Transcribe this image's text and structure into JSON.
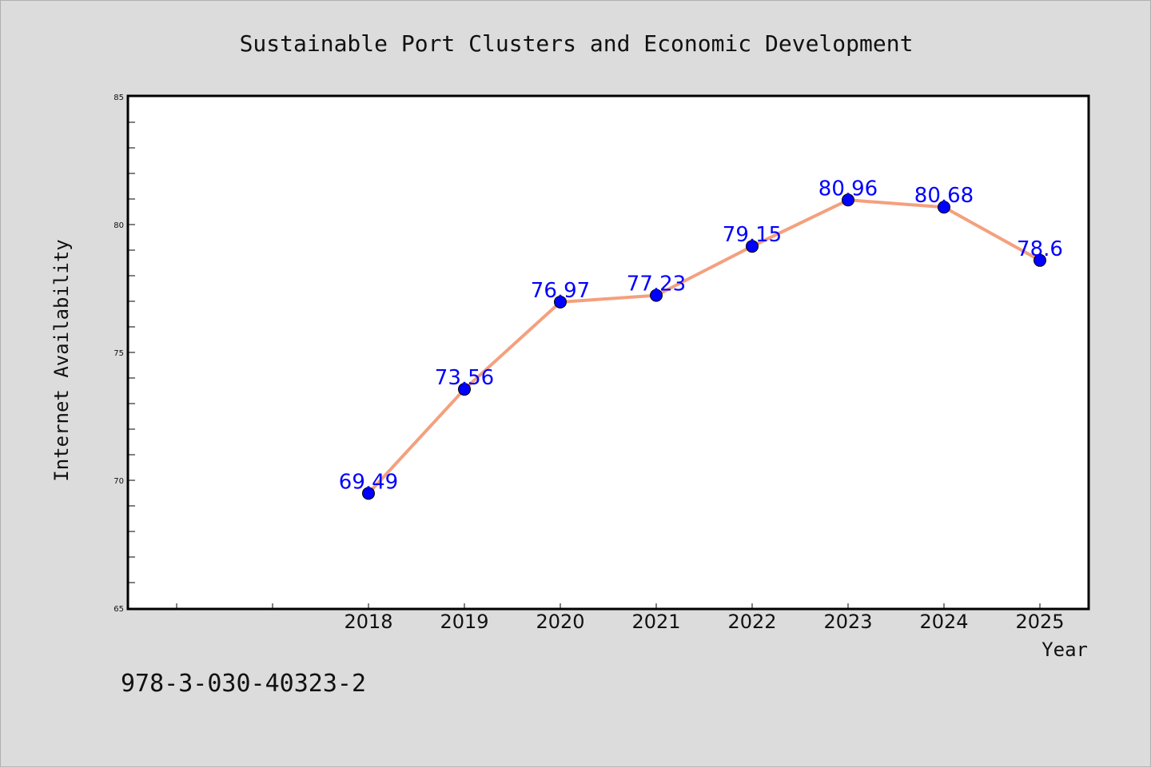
{
  "chart_data": {
    "type": "line",
    "title": "Sustainable Port Clusters and Economic Development",
    "xlabel": "Year",
    "ylabel": "Internet Availability",
    "x": [
      "2018",
      "2019",
      "2020",
      "2021",
      "2022",
      "2023",
      "2024",
      "2025"
    ],
    "series": [
      {
        "values": [
          69.49,
          73.56,
          76.97,
          77.23,
          79.15,
          80.96,
          80.68,
          78.6
        ],
        "labels": [
          "69.49",
          "73.56",
          "76.97",
          "77.23",
          "79.15",
          "80.96",
          "80.68",
          "78.6"
        ],
        "line_color": "#f4a07e",
        "marker_color": "#0000ff"
      }
    ],
    "ylim": [
      65,
      85
    ],
    "yticks": [
      "65",
      "70",
      "75",
      "80",
      "85"
    ],
    "grid": false,
    "legend": "none"
  },
  "footer": {
    "text": "978-3-030-40323-2"
  },
  "colors": {
    "background": "#dcdcdc",
    "plot_background": "#ffffff",
    "data_label": "#0000ff"
  }
}
